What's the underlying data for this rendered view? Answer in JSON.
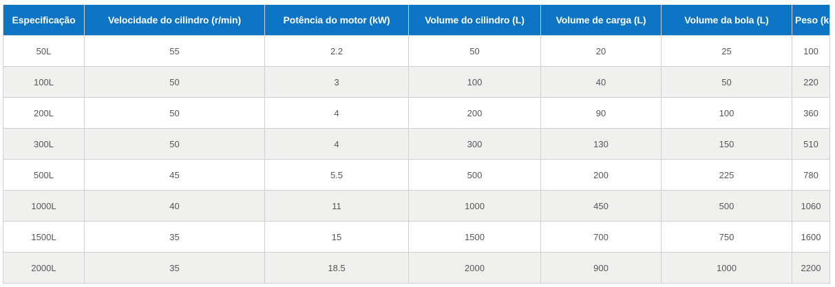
{
  "table": {
    "headers": [
      "Especificação",
      "Velocidade do cilindro (r/min)",
      "Potência do motor (kW)",
      "Volume do cilindro (L)",
      "Volume de carga (L)",
      "Volume da bola (L)",
      "Peso (kg)"
    ],
    "rows": [
      [
        "50L",
        "55",
        "2.2",
        "50",
        "20",
        "25",
        "100"
      ],
      [
        "100L",
        "50",
        "3",
        "100",
        "40",
        "50",
        "220"
      ],
      [
        "200L",
        "50",
        "4",
        "200",
        "90",
        "100",
        "360"
      ],
      [
        "300L",
        "50",
        "4",
        "300",
        "130",
        "150",
        "510"
      ],
      [
        "500L",
        "45",
        "5.5",
        "500",
        "200",
        "225",
        "780"
      ],
      [
        "1000L",
        "40",
        "11",
        "1000",
        "450",
        "500",
        "1060"
      ],
      [
        "1500L",
        "35",
        "15",
        "1500",
        "700",
        "750",
        "1600"
      ],
      [
        "2000L",
        "35",
        "18.5",
        "2000",
        "900",
        "1000",
        "2200"
      ]
    ],
    "colors": {
      "header_background": "#0c74c4",
      "header_text": "#ffffff",
      "row_odd": "#ffffff",
      "row_even": "#f0f0ee",
      "cell_text": "#555555",
      "border": "#cfcfcf"
    }
  }
}
